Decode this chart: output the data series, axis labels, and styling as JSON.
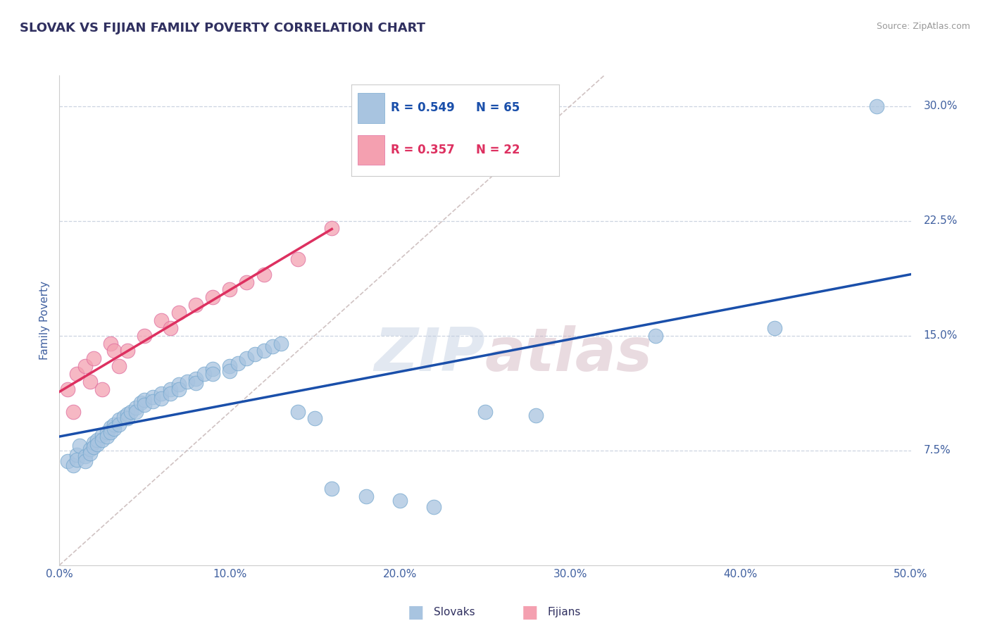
{
  "title": "SLOVAK VS FIJIAN FAMILY POVERTY CORRELATION CHART",
  "source_text": "Source: ZipAtlas.com",
  "ylabel": "Family Poverty",
  "xlim": [
    0.0,
    0.5
  ],
  "ylim": [
    0.0,
    0.32
  ],
  "xticks": [
    0.0,
    0.1,
    0.2,
    0.3,
    0.4,
    0.5
  ],
  "xticklabels": [
    "0.0%",
    "10.0%",
    "20.0%",
    "30.0%",
    "40.0%",
    "50.0%"
  ],
  "yticks": [
    0.075,
    0.15,
    0.225,
    0.3
  ],
  "yticklabels": [
    "7.5%",
    "15.0%",
    "22.5%",
    "30.0%"
  ],
  "slovak_R": 0.549,
  "slovak_N": 65,
  "fijian_R": 0.357,
  "fijian_N": 22,
  "slovak_color": "#a8c4e0",
  "fijian_color": "#f4a0b0",
  "slovak_line_color": "#1a4faa",
  "fijian_line_color": "#dd3060",
  "diagonal_color": "#c8b8b8",
  "grid_color": "#ccd4e0",
  "title_color": "#303060",
  "tick_label_color": "#4060a0",
  "axis_label_color": "#4060a0",
  "background_color": "#ffffff",
  "legend_fontsize": 13,
  "title_fontsize": 13,
  "slovak_x": [
    0.005,
    0.008,
    0.01,
    0.01,
    0.012,
    0.015,
    0.015,
    0.018,
    0.018,
    0.02,
    0.02,
    0.022,
    0.022,
    0.025,
    0.025,
    0.028,
    0.028,
    0.03,
    0.03,
    0.032,
    0.032,
    0.035,
    0.035,
    0.038,
    0.04,
    0.04,
    0.042,
    0.045,
    0.045,
    0.048,
    0.05,
    0.05,
    0.055,
    0.055,
    0.06,
    0.06,
    0.065,
    0.065,
    0.07,
    0.07,
    0.075,
    0.08,
    0.08,
    0.085,
    0.09,
    0.09,
    0.1,
    0.1,
    0.105,
    0.11,
    0.115,
    0.12,
    0.125,
    0.13,
    0.14,
    0.15,
    0.16,
    0.18,
    0.2,
    0.22,
    0.25,
    0.28,
    0.35,
    0.42,
    0.48
  ],
  "slovak_y": [
    0.068,
    0.065,
    0.072,
    0.069,
    0.078,
    0.071,
    0.068,
    0.076,
    0.073,
    0.08,
    0.077,
    0.082,
    0.079,
    0.085,
    0.082,
    0.087,
    0.084,
    0.09,
    0.087,
    0.092,
    0.089,
    0.095,
    0.092,
    0.097,
    0.099,
    0.096,
    0.1,
    0.103,
    0.1,
    0.106,
    0.108,
    0.105,
    0.11,
    0.107,
    0.112,
    0.109,
    0.115,
    0.112,
    0.118,
    0.115,
    0.12,
    0.122,
    0.119,
    0.125,
    0.128,
    0.125,
    0.13,
    0.127,
    0.132,
    0.135,
    0.138,
    0.14,
    0.143,
    0.145,
    0.1,
    0.096,
    0.05,
    0.045,
    0.042,
    0.038,
    0.1,
    0.098,
    0.15,
    0.155,
    0.3
  ],
  "fijian_x": [
    0.005,
    0.008,
    0.01,
    0.015,
    0.018,
    0.02,
    0.025,
    0.03,
    0.032,
    0.035,
    0.04,
    0.05,
    0.06,
    0.065,
    0.07,
    0.08,
    0.09,
    0.1,
    0.11,
    0.12,
    0.14,
    0.16
  ],
  "fijian_y": [
    0.115,
    0.1,
    0.125,
    0.13,
    0.12,
    0.135,
    0.115,
    0.145,
    0.14,
    0.13,
    0.14,
    0.15,
    0.16,
    0.155,
    0.165,
    0.17,
    0.175,
    0.18,
    0.185,
    0.19,
    0.2,
    0.22
  ]
}
